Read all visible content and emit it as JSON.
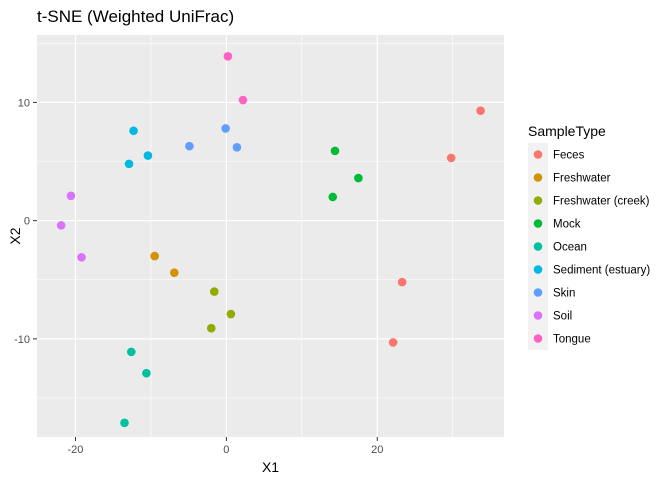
{
  "chart_data": {
    "type": "scatter",
    "title": "t-SNE (Weighted UniFrac)",
    "xlabel": "X1",
    "ylabel": "X2",
    "xlim": [
      -25.1,
      36.8
    ],
    "ylim": [
      -18.3,
      15.7
    ],
    "x_ticks": [
      -20,
      0,
      20
    ],
    "y_ticks": [
      -10,
      0,
      10
    ],
    "grid": true,
    "legend_position": "right",
    "legend_title": "SampleType",
    "series": [
      {
        "name": "Feces",
        "color": "#F8766D",
        "points": [
          [
            33.7,
            9.3
          ],
          [
            29.8,
            5.3
          ],
          [
            23.3,
            -5.2
          ],
          [
            22.1,
            -10.3
          ]
        ]
      },
      {
        "name": "Freshwater",
        "color": "#D39200",
        "points": [
          [
            -9.5,
            -3.0
          ],
          [
            -6.9,
            -4.4
          ]
        ]
      },
      {
        "name": "Freshwater (creek)",
        "color": "#93AA00",
        "points": [
          [
            -1.6,
            -6.0
          ],
          [
            0.6,
            -7.9
          ],
          [
            -2.0,
            -9.1
          ]
        ]
      },
      {
        "name": "Mock",
        "color": "#00BA38",
        "points": [
          [
            14.4,
            5.9
          ],
          [
            17.5,
            3.6
          ],
          [
            14.1,
            2.0
          ]
        ]
      },
      {
        "name": "Ocean",
        "color": "#00C19F",
        "points": [
          [
            -12.6,
            -11.1
          ],
          [
            -10.6,
            -12.9
          ],
          [
            -13.5,
            -17.1
          ]
        ]
      },
      {
        "name": "Sediment (estuary)",
        "color": "#00B9E3",
        "points": [
          [
            -12.3,
            7.6
          ],
          [
            -10.4,
            5.5
          ],
          [
            -12.9,
            4.8
          ]
        ]
      },
      {
        "name": "Skin",
        "color": "#619CFF",
        "points": [
          [
            -0.1,
            7.8
          ],
          [
            -4.9,
            6.3
          ],
          [
            1.4,
            6.2
          ]
        ]
      },
      {
        "name": "Soil",
        "color": "#DB72FB",
        "points": [
          [
            -20.6,
            2.1
          ],
          [
            -21.9,
            -0.4
          ],
          [
            -19.2,
            -3.1
          ]
        ]
      },
      {
        "name": "Tongue",
        "color": "#FF61C3",
        "points": [
          [
            0.2,
            13.9
          ],
          [
            2.2,
            10.2
          ]
        ]
      }
    ]
  }
}
